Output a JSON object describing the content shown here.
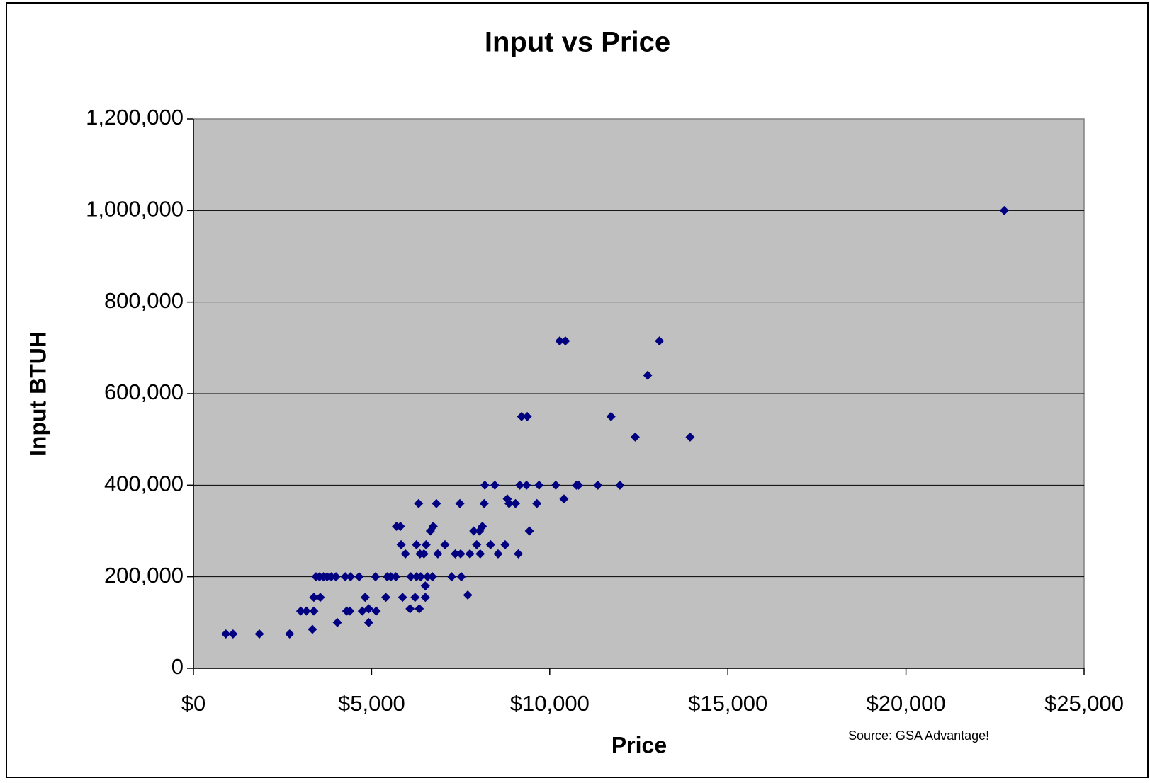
{
  "chart_data": {
    "type": "scatter",
    "title": "Input vs Price",
    "xlabel": "Price",
    "ylabel": "Input BTUH",
    "annotation": "Source: GSA Advantage!",
    "color": "#000080",
    "plot_background": "#c0c0c0",
    "grid": true,
    "xlim": [
      0,
      25000
    ],
    "xticks": [
      {
        "value": 0,
        "label": "$0"
      },
      {
        "value": 5000,
        "label": "$5,000"
      },
      {
        "value": 10000,
        "label": "$10,000"
      },
      {
        "value": 15000,
        "label": "$15,000"
      },
      {
        "value": 20000,
        "label": "$20,000"
      },
      {
        "value": 25000,
        "label": "$25,000"
      }
    ],
    "ylim": [
      0,
      1200000
    ],
    "yticks": [
      0,
      {
        "value": 200000,
        "label": "200,000"
      },
      {
        "value": 400000,
        "label": "400,000"
      },
      {
        "value": 600000,
        "label": "600,000"
      },
      {
        "value": 800000,
        "label": "800,000"
      },
      {
        "value": 1000000,
        "label": "1,000,000"
      },
      {
        "value": 1200000,
        "label": "1,200,000"
      }
    ],
    "x": [
      910,
      1110,
      1850,
      2700,
      3010,
      3170,
      3380,
      3340,
      3380,
      3560,
      3440,
      3540,
      3650,
      3750,
      3870,
      4000,
      4040,
      4260,
      4410,
      4300,
      4390,
      4650,
      4740,
      4820,
      4920,
      4920,
      5130,
      5110,
      5400,
      5440,
      5540,
      5680,
      5700,
      5810,
      5830,
      5950,
      5870,
      6080,
      6100,
      6260,
      6220,
      6320,
      6260,
      6360,
      6340,
      6380,
      6470,
      6510,
      6530,
      6510,
      6570,
      6710,
      6650,
      6730,
      6820,
      6860,
      7060,
      7250,
      7350,
      7500,
      7480,
      7520,
      7700,
      7760,
      7870,
      7950,
      8030,
      8050,
      8110,
      8160,
      8180,
      8340,
      8460,
      8550,
      8750,
      8810,
      8860,
      9040,
      9120,
      9160,
      9210,
      9370,
      9350,
      9430,
      9640,
      9700,
      10170,
      10280,
      10440,
      10400,
      10750,
      10810,
      11350,
      11720,
      11970,
      12400,
      12750,
      13080,
      13940,
      22760
    ],
    "values": [
      75000,
      75000,
      75000,
      75000,
      125000,
      125000,
      125000,
      85000,
      155000,
      155000,
      200000,
      200000,
      200000,
      200000,
      200000,
      200000,
      100000,
      200000,
      200000,
      125000,
      125000,
      200000,
      125000,
      155000,
      100000,
      130000,
      125000,
      200000,
      155000,
      200000,
      200000,
      200000,
      310000,
      310000,
      270000,
      250000,
      155000,
      130000,
      200000,
      200000,
      155000,
      360000,
      270000,
      250000,
      130000,
      200000,
      250000,
      155000,
      270000,
      180000,
      200000,
      200000,
      300000,
      310000,
      360000,
      250000,
      270000,
      200000,
      250000,
      250000,
      360000,
      200000,
      160000,
      250000,
      300000,
      270000,
      300000,
      250000,
      310000,
      360000,
      400000,
      270000,
      400000,
      250000,
      270000,
      370000,
      360000,
      360000,
      250000,
      400000,
      550000,
      550000,
      400000,
      300000,
      360000,
      400000,
      400000,
      715000,
      715000,
      370000,
      400000,
      400000,
      400000,
      550000,
      400000,
      505000,
      640000,
      715000,
      505000,
      1000000
    ]
  }
}
